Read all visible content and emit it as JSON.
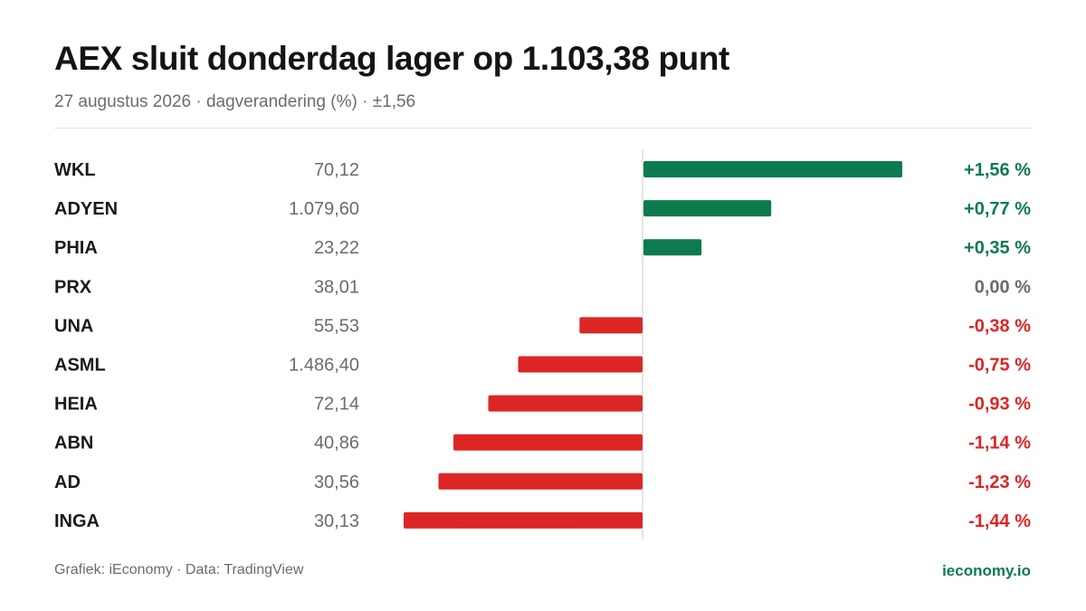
{
  "header": {
    "title": "AEX sluit donderdag lager op 1.103,38 punt",
    "subtitle": "27 augustus 2026 · dagverandering (%) · ±1,56"
  },
  "footer": {
    "source": "Grafiek: iEconomy · Data: TradingView",
    "brand": "ieconomy.io"
  },
  "colors": {
    "positive": "#0e7a4f",
    "negative": "#dc2626",
    "neutral": "#6b6b6b",
    "ticker": "#1a1a1a",
    "price": "#6b6b6b",
    "axis": "#dcdcdc"
  },
  "chart_data": {
    "type": "bar",
    "orientation": "horizontal",
    "scale_max": 1.56,
    "categories": [
      "WKL",
      "ADYEN",
      "PHIA",
      "PRX",
      "UNA",
      "ASML",
      "HEIA",
      "ABN",
      "AD",
      "INGA"
    ],
    "prices": [
      "70,12",
      "1.079,60",
      "23,22",
      "38,01",
      "55,53",
      "1.486,40",
      "72,14",
      "40,86",
      "30,56",
      "30,13"
    ],
    "values": [
      1.56,
      0.77,
      0.35,
      0.0,
      -0.38,
      -0.75,
      -0.93,
      -1.14,
      -1.23,
      -1.44
    ],
    "value_labels": [
      "+1,56 %",
      "+0,77 %",
      "+0,35 %",
      "0,00 %",
      "-0,38 %",
      "-0,75 %",
      "-0,93 %",
      "-1,14 %",
      "-1,23 %",
      "-1,44 %"
    ]
  }
}
